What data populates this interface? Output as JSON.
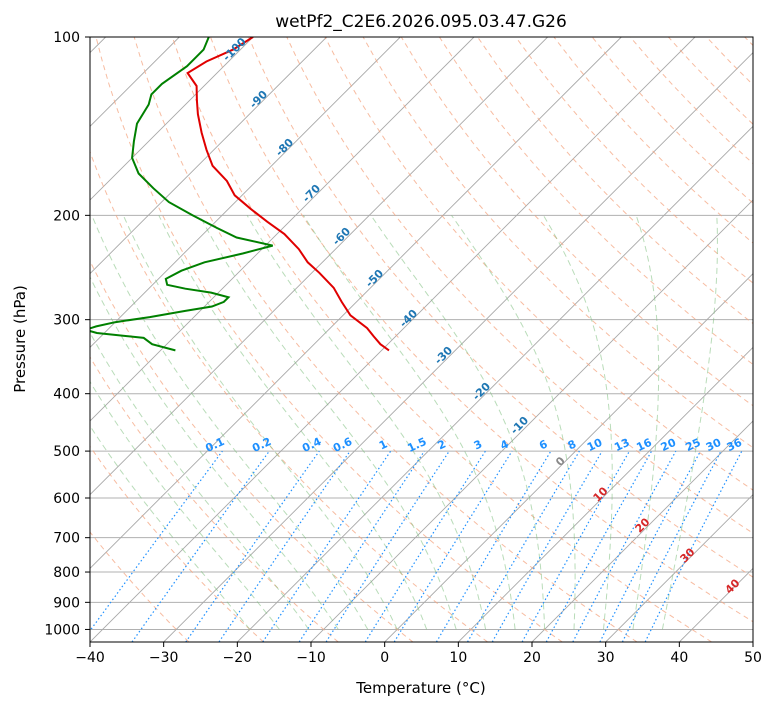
{
  "chart_data": {
    "type": "skew-t",
    "title": "wetPf2_C2E6.2026.095.03.47.G26",
    "xlabel": "Temperature (°C)",
    "ylabel": "Pressure (hPa)",
    "xlim": [
      -40,
      50
    ],
    "ylim": [
      1050,
      100
    ],
    "x_ticks": [
      -40,
      -30,
      -20,
      -10,
      0,
      10,
      20,
      30,
      40,
      50
    ],
    "y_ticks": [
      100,
      200,
      300,
      400,
      500,
      600,
      700,
      800,
      900,
      1000
    ],
    "x_tick_labels": [
      "−40",
      "−30",
      "−20",
      "−10",
      "0",
      "10",
      "20",
      "30",
      "40",
      "50"
    ],
    "y_tick_labels": [
      "100",
      "200",
      "300",
      "400",
      "500",
      "600",
      "700",
      "800",
      "900",
      "1000"
    ],
    "dry_adiabat_labels": [
      "-100",
      "-90",
      "-80",
      "-70",
      "-60",
      "-50",
      "-40",
      "-30",
      "-20",
      "-10"
    ],
    "mixing_ratio_labels": [
      "0.1",
      "0.2",
      "0.4",
      "0.6",
      "1",
      "1.5",
      "2",
      "3",
      "4",
      "6",
      "8",
      "10",
      "13",
      "16",
      "20",
      "25",
      "30",
      "36"
    ],
    "moist_adiabat_labels": [
      "0",
      "10",
      "20",
      "30",
      "40"
    ],
    "colors": {
      "temperature": "#e00000",
      "dewpoint": "#008000",
      "dry_adiabat": "#f4a582",
      "moist_adiabat": "#7fbf7f",
      "mixing_ratio": "#1e90ff",
      "isotherm": "#999999"
    },
    "series": [
      {
        "name": "Temperature",
        "points": [
          [
            -100,
            100
          ],
          [
            -101,
            105
          ],
          [
            -103,
            110
          ],
          [
            -104,
            115
          ],
          [
            -101,
            121
          ],
          [
            -99,
            128
          ],
          [
            -97,
            135
          ],
          [
            -94,
            145
          ],
          [
            -91,
            155
          ],
          [
            -88,
            165
          ],
          [
            -84,
            175
          ],
          [
            -81,
            185
          ],
          [
            -77,
            195
          ],
          [
            -73,
            205
          ],
          [
            -69,
            215
          ],
          [
            -65,
            228
          ],
          [
            -62,
            240
          ],
          [
            -59,
            250
          ],
          [
            -55,
            265
          ],
          [
            -52,
            280
          ],
          [
            -49,
            295
          ],
          [
            -45,
            310
          ],
          [
            -43,
            320
          ],
          [
            -41,
            330
          ],
          [
            -39,
            338
          ]
        ]
      },
      {
        "name": "Dewpoint",
        "points": [
          [
            -106,
            100
          ],
          [
            -105,
            105
          ],
          [
            -105,
            108
          ],
          [
            -105,
            112
          ],
          [
            -106,
            120
          ],
          [
            -106,
            125
          ],
          [
            -105,
            130
          ],
          [
            -104,
            140
          ],
          [
            -102,
            150
          ],
          [
            -100,
            160
          ],
          [
            -97,
            170
          ],
          [
            -93,
            180
          ],
          [
            -89,
            190
          ],
          [
            -84,
            200
          ],
          [
            -79,
            210
          ],
          [
            -75,
            218
          ],
          [
            -69,
            225
          ],
          [
            -72,
            232
          ],
          [
            -76,
            240
          ],
          [
            -78,
            248
          ],
          [
            -79,
            256
          ],
          [
            -78,
            262
          ],
          [
            -75,
            266
          ],
          [
            -71,
            270
          ],
          [
            -68,
            275
          ],
          [
            -68,
            280
          ],
          [
            -69,
            285
          ],
          [
            -72,
            290
          ],
          [
            -76,
            297
          ],
          [
            -80,
            303
          ],
          [
            -82,
            308
          ],
          [
            -83,
            312
          ],
          [
            -81,
            316
          ],
          [
            -74,
            322
          ],
          [
            -72,
            330
          ],
          [
            -68,
            338
          ]
        ]
      }
    ]
  }
}
